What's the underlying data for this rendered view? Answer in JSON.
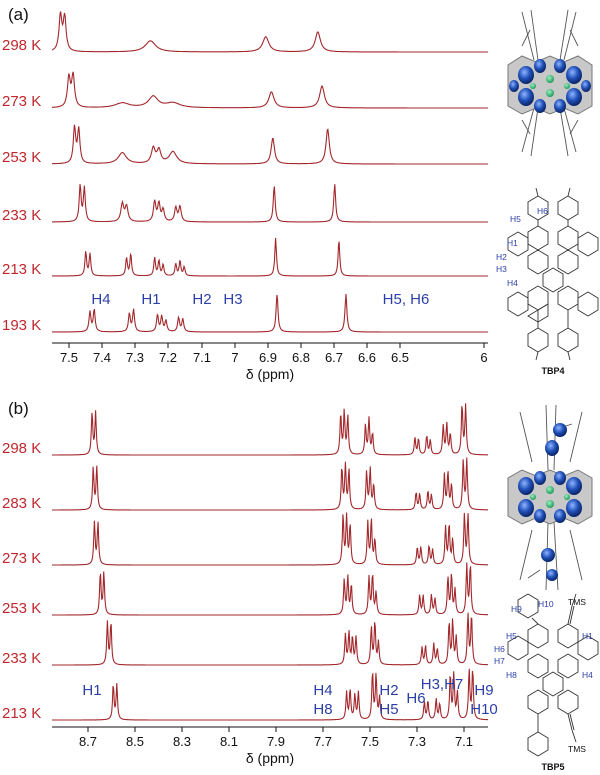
{
  "figure": {
    "panels": [
      {
        "label": "(a)",
        "molecule_name": "TBP4",
        "atom_labels": [
          "H5",
          "H6",
          "H1",
          "H2",
          "H3",
          "H4"
        ],
        "peak_labels": [
          "H4",
          "H1",
          "H2",
          "H3",
          "H5, H6"
        ],
        "xlabel": "δ (ppm)"
      },
      {
        "label": "(b)",
        "molecule_name": "TBP5",
        "atom_labels": [
          "H9",
          "H10",
          "TMS",
          "H5",
          "H1",
          "H6",
          "H7",
          "H8",
          "H4",
          "TMS"
        ],
        "peak_labels": [
          "H1",
          "H4",
          "H8",
          "H2",
          "H5",
          "H6",
          "H3,H7",
          "H9",
          "H10"
        ],
        "xlabel": "δ (ppm)"
      }
    ]
  },
  "chart_data": [
    {
      "type": "line",
      "title": "",
      "xlabel": "δ (ppm)",
      "xlim": [
        7.55,
        6.0
      ],
      "x_reversed": true,
      "xticks": [
        "7.5",
        "7.4",
        "7.3",
        "7.2",
        "7.1",
        "7",
        "6.9",
        "6.8",
        "6.7",
        "6.6",
        "6.5",
        "6"
      ],
      "series": [
        {
          "name": "298 K",
          "peaks": [
            {
              "x": 7.52,
              "h": 0.9,
              "w": 0.006
            },
            {
              "x": 7.505,
              "h": 0.85,
              "w": 0.006
            },
            {
              "x": 7.2,
              "h": 0.28,
              "w": 0.022
            },
            {
              "x": 6.79,
              "h": 0.38,
              "w": 0.013
            },
            {
              "x": 6.605,
              "h": 0.5,
              "w": 0.011
            }
          ]
        },
        {
          "name": "273 K",
          "peaks": [
            {
              "x": 7.49,
              "h": 0.75,
              "w": 0.006
            },
            {
              "x": 7.475,
              "h": 0.8,
              "w": 0.006
            },
            {
              "x": 7.3,
              "h": 0.12,
              "w": 0.03
            },
            {
              "x": 7.19,
              "h": 0.28,
              "w": 0.02
            },
            {
              "x": 7.12,
              "h": 0.12,
              "w": 0.03
            },
            {
              "x": 6.77,
              "h": 0.4,
              "w": 0.011
            },
            {
              "x": 6.59,
              "h": 0.55,
              "w": 0.01
            }
          ]
        },
        {
          "name": "253 K",
          "peaks": [
            {
              "x": 7.47,
              "h": 0.9,
              "w": 0.005
            },
            {
              "x": 7.455,
              "h": 0.85,
              "w": 0.005
            },
            {
              "x": 7.3,
              "h": 0.28,
              "w": 0.017
            },
            {
              "x": 7.19,
              "h": 0.38,
              "w": 0.008
            },
            {
              "x": 7.17,
              "h": 0.33,
              "w": 0.008
            },
            {
              "x": 7.12,
              "h": 0.3,
              "w": 0.016
            },
            {
              "x": 6.765,
              "h": 0.65,
              "w": 0.007
            },
            {
              "x": 6.57,
              "h": 0.88,
              "w": 0.007
            }
          ]
        },
        {
          "name": "233 K",
          "peaks": [
            {
              "x": 7.45,
              "h": 0.9,
              "w": 0.004
            },
            {
              "x": 7.435,
              "h": 0.85,
              "w": 0.004
            },
            {
              "x": 7.3,
              "h": 0.45,
              "w": 0.006
            },
            {
              "x": 7.285,
              "h": 0.38,
              "w": 0.006
            },
            {
              "x": 7.185,
              "h": 0.5,
              "w": 0.005
            },
            {
              "x": 7.17,
              "h": 0.45,
              "w": 0.005
            },
            {
              "x": 7.155,
              "h": 0.3,
              "w": 0.005
            },
            {
              "x": 7.11,
              "h": 0.35,
              "w": 0.005
            },
            {
              "x": 7.095,
              "h": 0.38,
              "w": 0.005
            },
            {
              "x": 6.76,
              "h": 0.9,
              "w": 0.004
            },
            {
              "x": 6.545,
              "h": 0.95,
              "w": 0.004
            }
          ]
        },
        {
          "name": "213 K",
          "peaks": [
            {
              "x": 7.43,
              "h": 0.6,
              "w": 0.0035
            },
            {
              "x": 7.415,
              "h": 0.55,
              "w": 0.0035
            },
            {
              "x": 7.285,
              "h": 0.45,
              "w": 0.0035
            },
            {
              "x": 7.27,
              "h": 0.55,
              "w": 0.0035
            },
            {
              "x": 7.185,
              "h": 0.45,
              "w": 0.0035
            },
            {
              "x": 7.17,
              "h": 0.38,
              "w": 0.0035
            },
            {
              "x": 7.155,
              "h": 0.28,
              "w": 0.0035
            },
            {
              "x": 7.11,
              "h": 0.3,
              "w": 0.0035
            },
            {
              "x": 7.095,
              "h": 0.38,
              "w": 0.0035
            },
            {
              "x": 7.08,
              "h": 0.22,
              "w": 0.0035
            },
            {
              "x": 6.755,
              "h": 0.95,
              "w": 0.0035
            },
            {
              "x": 6.53,
              "h": 0.9,
              "w": 0.0035
            }
          ]
        },
        {
          "name": "193 K",
          "peaks": [
            {
              "x": 7.415,
              "h": 0.5,
              "w": 0.004
            },
            {
              "x": 7.4,
              "h": 0.55,
              "w": 0.004
            },
            {
              "x": 7.275,
              "h": 0.45,
              "w": 0.004
            },
            {
              "x": 7.26,
              "h": 0.55,
              "w": 0.004
            },
            {
              "x": 7.175,
              "h": 0.42,
              "w": 0.004
            },
            {
              "x": 7.16,
              "h": 0.38,
              "w": 0.004
            },
            {
              "x": 7.145,
              "h": 0.28,
              "w": 0.004
            },
            {
              "x": 7.1,
              "h": 0.35,
              "w": 0.004
            },
            {
              "x": 7.085,
              "h": 0.32,
              "w": 0.004
            },
            {
              "x": 6.75,
              "h": 0.95,
              "w": 0.004
            },
            {
              "x": 6.505,
              "h": 0.95,
              "w": 0.004
            }
          ]
        }
      ]
    },
    {
      "type": "line",
      "title": "",
      "xlabel": "δ (ppm)",
      "xlim": [
        8.85,
        7.0
      ],
      "x_reversed": true,
      "xticks": [
        "8.7",
        "8.5",
        "8.3",
        "8.1",
        "7.9",
        "7.7",
        "7.5",
        "7.3",
        "7.1"
      ],
      "series": [
        {
          "name": "298 K",
          "peaks": [
            {
              "x": 8.68,
              "h": 0.85,
              "w": 0.0035
            },
            {
              "x": 8.665,
              "h": 0.85,
              "w": 0.0035
            },
            {
              "x": 7.625,
              "h": 0.82,
              "w": 0.0035
            },
            {
              "x": 7.61,
              "h": 0.86,
              "w": 0.0035
            },
            {
              "x": 7.595,
              "h": 0.76,
              "w": 0.0035
            },
            {
              "x": 7.52,
              "h": 0.6,
              "w": 0.0035
            },
            {
              "x": 7.505,
              "h": 0.72,
              "w": 0.0035
            },
            {
              "x": 7.49,
              "h": 0.42,
              "w": 0.0035
            },
            {
              "x": 7.31,
              "h": 0.35,
              "w": 0.0035
            },
            {
              "x": 7.295,
              "h": 0.32,
              "w": 0.0035
            },
            {
              "x": 7.26,
              "h": 0.38,
              "w": 0.0035
            },
            {
              "x": 7.245,
              "h": 0.3,
              "w": 0.0035
            },
            {
              "x": 7.19,
              "h": 0.58,
              "w": 0.0035
            },
            {
              "x": 7.175,
              "h": 0.62,
              "w": 0.0035
            },
            {
              "x": 7.16,
              "h": 0.42,
              "w": 0.0035
            },
            {
              "x": 7.11,
              "h": 1.0,
              "w": 0.0035
            },
            {
              "x": 7.095,
              "h": 0.98,
              "w": 0.0035
            }
          ]
        },
        {
          "name": "283 K",
          "peaks": [
            {
              "x": 8.675,
              "h": 0.85,
              "w": 0.0035
            },
            {
              "x": 8.66,
              "h": 0.85,
              "w": 0.0035
            },
            {
              "x": 7.62,
              "h": 0.84,
              "w": 0.0035
            },
            {
              "x": 7.605,
              "h": 0.88,
              "w": 0.0035
            },
            {
              "x": 7.59,
              "h": 0.8,
              "w": 0.0035
            },
            {
              "x": 7.515,
              "h": 0.75,
              "w": 0.0035
            },
            {
              "x": 7.5,
              "h": 0.82,
              "w": 0.0035
            },
            {
              "x": 7.485,
              "h": 0.5,
              "w": 0.0035
            },
            {
              "x": 7.305,
              "h": 0.35,
              "w": 0.0035
            },
            {
              "x": 7.29,
              "h": 0.32,
              "w": 0.0035
            },
            {
              "x": 7.255,
              "h": 0.38,
              "w": 0.0035
            },
            {
              "x": 7.24,
              "h": 0.3,
              "w": 0.0035
            },
            {
              "x": 7.185,
              "h": 0.7,
              "w": 0.0035
            },
            {
              "x": 7.17,
              "h": 0.75,
              "w": 0.0035
            },
            {
              "x": 7.155,
              "h": 0.5,
              "w": 0.0035
            },
            {
              "x": 7.105,
              "h": 1.0,
              "w": 0.0035
            },
            {
              "x": 7.09,
              "h": 1.0,
              "w": 0.0035
            }
          ]
        },
        {
          "name": "273 K",
          "peaks": [
            {
              "x": 8.67,
              "h": 0.85,
              "w": 0.0035
            },
            {
              "x": 8.655,
              "h": 0.85,
              "w": 0.0035
            },
            {
              "x": 7.615,
              "h": 1.0,
              "w": 0.0035
            },
            {
              "x": 7.6,
              "h": 1.0,
              "w": 0.0035
            },
            {
              "x": 7.585,
              "h": 0.8,
              "w": 0.0035
            },
            {
              "x": 7.51,
              "h": 0.85,
              "w": 0.0035
            },
            {
              "x": 7.495,
              "h": 0.9,
              "w": 0.0035
            },
            {
              "x": 7.48,
              "h": 0.5,
              "w": 0.0035
            },
            {
              "x": 7.3,
              "h": 0.35,
              "w": 0.0035
            },
            {
              "x": 7.285,
              "h": 0.35,
              "w": 0.0035
            },
            {
              "x": 7.25,
              "h": 0.38,
              "w": 0.0035
            },
            {
              "x": 7.235,
              "h": 0.3,
              "w": 0.0035
            },
            {
              "x": 7.18,
              "h": 0.75,
              "w": 0.0035
            },
            {
              "x": 7.165,
              "h": 0.8,
              "w": 0.0035
            },
            {
              "x": 7.15,
              "h": 0.5,
              "w": 0.0035
            },
            {
              "x": 7.1,
              "h": 1.0,
              "w": 0.0035
            },
            {
              "x": 7.085,
              "h": 1.0,
              "w": 0.0035
            }
          ]
        },
        {
          "name": "253 K",
          "peaks": [
            {
              "x": 8.645,
              "h": 0.85,
              "w": 0.0035
            },
            {
              "x": 8.63,
              "h": 0.85,
              "w": 0.0035
            },
            {
              "x": 7.61,
              "h": 0.7,
              "w": 0.0035
            },
            {
              "x": 7.595,
              "h": 0.75,
              "w": 0.0035
            },
            {
              "x": 7.58,
              "h": 0.6,
              "w": 0.0035
            },
            {
              "x": 7.505,
              "h": 0.75,
              "w": 0.0035
            },
            {
              "x": 7.49,
              "h": 0.8,
              "w": 0.0035
            },
            {
              "x": 7.475,
              "h": 0.45,
              "w": 0.0035
            },
            {
              "x": 7.29,
              "h": 0.4,
              "w": 0.0035
            },
            {
              "x": 7.275,
              "h": 0.38,
              "w": 0.0035
            },
            {
              "x": 7.24,
              "h": 0.4,
              "w": 0.0035
            },
            {
              "x": 7.225,
              "h": 0.32,
              "w": 0.0035
            },
            {
              "x": 7.17,
              "h": 0.75,
              "w": 0.0035
            },
            {
              "x": 7.155,
              "h": 0.8,
              "w": 0.0035
            },
            {
              "x": 7.14,
              "h": 0.5,
              "w": 0.0035
            },
            {
              "x": 7.09,
              "h": 1.0,
              "w": 0.0035
            },
            {
              "x": 7.075,
              "h": 1.0,
              "w": 0.0035
            }
          ]
        },
        {
          "name": "233 K",
          "peaks": [
            {
              "x": 8.615,
              "h": 0.85,
              "w": 0.0035
            },
            {
              "x": 8.6,
              "h": 0.85,
              "w": 0.0035
            },
            {
              "x": 7.605,
              "h": 0.6,
              "w": 0.0035
            },
            {
              "x": 7.59,
              "h": 0.65,
              "w": 0.0035
            },
            {
              "x": 7.575,
              "h": 0.55,
              "w": 0.0035
            },
            {
              "x": 7.56,
              "h": 0.55,
              "w": 0.0035
            },
            {
              "x": 7.495,
              "h": 0.75,
              "w": 0.0035
            },
            {
              "x": 7.48,
              "h": 0.85,
              "w": 0.0035
            },
            {
              "x": 7.465,
              "h": 0.45,
              "w": 0.0035
            },
            {
              "x": 7.28,
              "h": 0.35,
              "w": 0.0035
            },
            {
              "x": 7.265,
              "h": 0.38,
              "w": 0.0035
            },
            {
              "x": 7.23,
              "h": 0.42,
              "w": 0.0035
            },
            {
              "x": 7.215,
              "h": 0.32,
              "w": 0.0035
            },
            {
              "x": 7.165,
              "h": 0.85,
              "w": 0.0035
            },
            {
              "x": 7.15,
              "h": 0.88,
              "w": 0.0035
            },
            {
              "x": 7.135,
              "h": 0.55,
              "w": 0.0035
            },
            {
              "x": 7.085,
              "h": 1.0,
              "w": 0.0035
            },
            {
              "x": 7.07,
              "h": 1.0,
              "w": 0.0035
            }
          ]
        },
        {
          "name": "213 K",
          "peaks": [
            {
              "x": 8.59,
              "h": 0.7,
              "w": 0.0035
            },
            {
              "x": 8.575,
              "h": 0.7,
              "w": 0.0035
            },
            {
              "x": 7.6,
              "h": 0.55,
              "w": 0.0035
            },
            {
              "x": 7.585,
              "h": 0.6,
              "w": 0.0035
            },
            {
              "x": 7.565,
              "h": 0.5,
              "w": 0.0035
            },
            {
              "x": 7.55,
              "h": 0.55,
              "w": 0.0035
            },
            {
              "x": 7.49,
              "h": 0.95,
              "w": 0.0035
            },
            {
              "x": 7.475,
              "h": 0.9,
              "w": 0.0035
            },
            {
              "x": 7.46,
              "h": 0.45,
              "w": 0.0035
            },
            {
              "x": 7.27,
              "h": 0.35,
              "w": 0.0035
            },
            {
              "x": 7.255,
              "h": 0.38,
              "w": 0.0035
            },
            {
              "x": 7.22,
              "h": 0.42,
              "w": 0.0035
            },
            {
              "x": 7.205,
              "h": 0.32,
              "w": 0.0035
            },
            {
              "x": 7.16,
              "h": 0.9,
              "w": 0.0035
            },
            {
              "x": 7.145,
              "h": 0.9,
              "w": 0.0035
            },
            {
              "x": 7.13,
              "h": 0.55,
              "w": 0.0035
            },
            {
              "x": 7.08,
              "h": 1.0,
              "w": 0.0035
            },
            {
              "x": 7.065,
              "h": 1.0,
              "w": 0.0035
            }
          ]
        }
      ]
    }
  ]
}
